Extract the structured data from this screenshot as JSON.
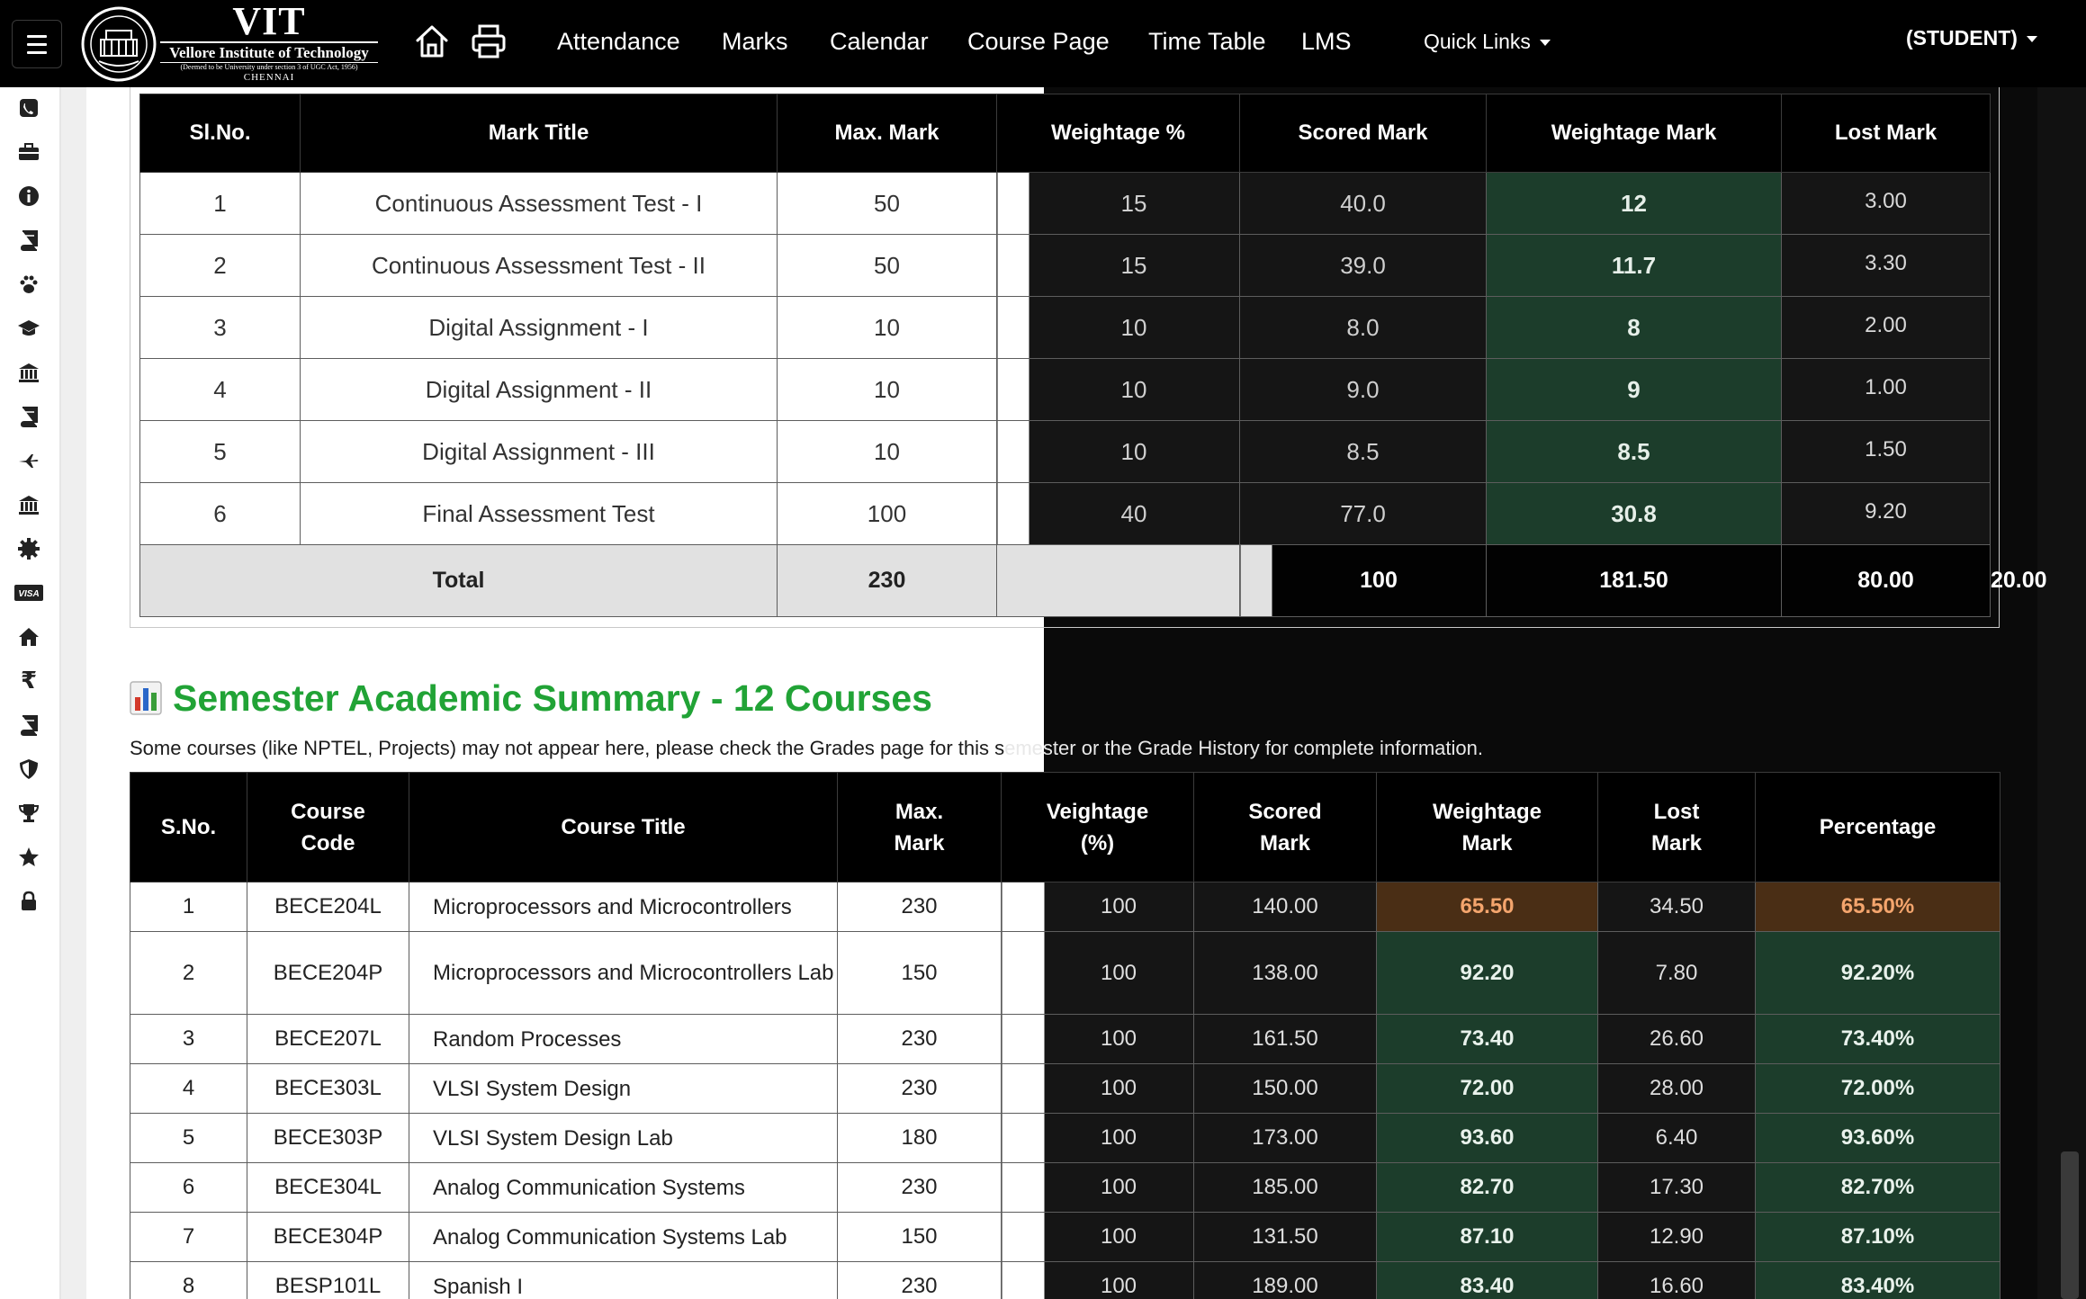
{
  "navbar": {
    "logo": {
      "title": "VIT",
      "name": "Vellore Institute of Technology",
      "subtitle": "(Deemed to be University under section 3 of UGC Act, 1956)",
      "city": "CHENNAI"
    },
    "links": [
      "Attendance",
      "Marks",
      "Calendar",
      "Course Page",
      "Time Table",
      "LMS"
    ],
    "quick_links": "Quick Links",
    "user": "(STUDENT)"
  },
  "sidebar": {
    "icons": [
      "phone-icon",
      "briefcase-icon",
      "info-icon",
      "book-icon",
      "paw-icon",
      "graduation-cap-icon",
      "bank-icon",
      "book-icon",
      "plane-icon",
      "bank-icon",
      "gear-icon",
      "visa-icon",
      "home-icon",
      "rupee-icon",
      "book-icon",
      "shield-icon",
      "trophy-icon",
      "star-icon",
      "lock-icon"
    ],
    "visa_label": "VISA",
    "rupee_label": "₹"
  },
  "marks_table": {
    "headers": [
      "Sl.No.",
      "Mark Title",
      "Max. Mark",
      "Weightage %",
      "Scored Mark",
      "Weightage Mark",
      "Lost Mark"
    ],
    "rows": [
      {
        "sl": "1",
        "title": "Continuous Assessment Test - I",
        "max": "50",
        "weight": "15",
        "scored": "40.0",
        "wmark": "12",
        "lost": "3.00"
      },
      {
        "sl": "2",
        "title": "Continuous Assessment Test - II",
        "max": "50",
        "weight": "15",
        "scored": "39.0",
        "wmark": "11.7",
        "lost": "3.30"
      },
      {
        "sl": "3",
        "title": "Digital Assignment - I",
        "max": "10",
        "weight": "10",
        "scored": "8.0",
        "wmark": "8",
        "lost": "2.00"
      },
      {
        "sl": "4",
        "title": "Digital Assignment - II",
        "max": "10",
        "weight": "10",
        "scored": "9.0",
        "wmark": "9",
        "lost": "1.00"
      },
      {
        "sl": "5",
        "title": "Digital Assignment - III",
        "max": "10",
        "weight": "10",
        "scored": "8.5",
        "wmark": "8.5",
        "lost": "1.50"
      },
      {
        "sl": "6",
        "title": "Final Assessment Test",
        "max": "100",
        "weight": "40",
        "scored": "77.0",
        "wmark": "30.8",
        "lost": "9.20"
      }
    ],
    "total": {
      "label": "Total",
      "max": "230",
      "weight": "100",
      "scored": "181.50",
      "wmark": "80.00",
      "lost": "20.00"
    }
  },
  "summary": {
    "icon": "bar-chart-icon",
    "title": "Semester Academic Summary - 12 Courses",
    "note_left": "Some courses (like NPTEL, Projects) may not appear here, please check the Grades page for this s",
    "note_right": "emester or the Grade History for complete information.",
    "headers": {
      "sno": "S.No.",
      "code_1": "Course",
      "code_2": "Code",
      "title": "Course Title",
      "max_1": "Max.",
      "max_2": "Mark",
      "weight_1": "Veightage",
      "weight_2": "(%)",
      "scored_1": "Scored",
      "scored_2": "Mark",
      "wmark_1": "Weightage",
      "wmark_2": "Mark",
      "lost_1": "Lost",
      "lost_2": "Mark",
      "pct": "Percentage"
    },
    "courses": [
      {
        "sno": "1",
        "code": "BECE204L",
        "title": "Microprocessors and Microcontrollers",
        "max": "230",
        "weight": "100",
        "scored": "140.00",
        "wmark": "65.50",
        "lost": "34.50",
        "pct": "65.50%",
        "status": "warn"
      },
      {
        "sno": "2",
        "code": "BECE204P",
        "title": "Microprocessors and Microcontrollers Lab",
        "max": "150",
        "weight": "100",
        "scored": "138.00",
        "wmark": "92.20",
        "lost": "7.80",
        "pct": "92.20%",
        "status": "good"
      },
      {
        "sno": "3",
        "code": "BECE207L",
        "title": "Random Processes",
        "max": "230",
        "weight": "100",
        "scored": "161.50",
        "wmark": "73.40",
        "lost": "26.60",
        "pct": "73.40%",
        "status": "good"
      },
      {
        "sno": "4",
        "code": "BECE303L",
        "title": "VLSI System Design",
        "max": "230",
        "weight": "100",
        "scored": "150.00",
        "wmark": "72.00",
        "lost": "28.00",
        "pct": "72.00%",
        "status": "good"
      },
      {
        "sno": "5",
        "code": "BECE303P",
        "title": "VLSI System Design Lab",
        "max": "180",
        "weight": "100",
        "scored": "173.00",
        "wmark": "93.60",
        "lost": "6.40",
        "pct": "93.60%",
        "status": "good"
      },
      {
        "sno": "6",
        "code": "BECE304L",
        "title": "Analog Communication Systems",
        "max": "230",
        "weight": "100",
        "scored": "185.00",
        "wmark": "82.70",
        "lost": "17.30",
        "pct": "82.70%",
        "status": "good"
      },
      {
        "sno": "7",
        "code": "BECE304P",
        "title": "Analog Communication Systems Lab",
        "max": "150",
        "weight": "100",
        "scored": "131.50",
        "wmark": "87.10",
        "lost": "12.90",
        "pct": "87.10%",
        "status": "good"
      },
      {
        "sno": "8",
        "code": "BESP101L",
        "title": "Spanish I",
        "max": "230",
        "weight": "100",
        "scored": "189.00",
        "wmark": "83.40",
        "lost": "16.60",
        "pct": "83.40%",
        "status": "good"
      }
    ]
  },
  "colors": {
    "navbar": "#000000",
    "header_bg": "#000000",
    "good_cell": "#1c3d2b",
    "warn_cell": "#4a2e15",
    "warn_text": "#f4a56d",
    "title_green": "#21a336"
  }
}
